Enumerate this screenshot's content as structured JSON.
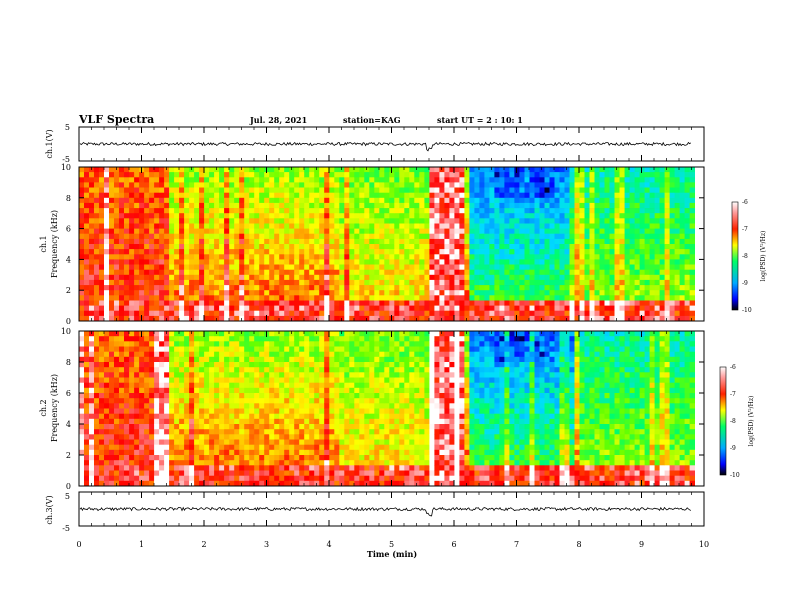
{
  "header": {
    "title": "VLF Spectra",
    "date": "Jul. 28, 2021",
    "station": "station=KAG",
    "start": "start  UT =  2 : 10: 1"
  },
  "colors": {
    "scale": [
      "#000000",
      "#0000ff",
      "#0088ff",
      "#00ddff",
      "#00ff66",
      "#66ff00",
      "#ffff00",
      "#ff8800",
      "#ff0000",
      "#ff9999",
      "#ffffff"
    ],
    "trace": "#000000",
    "frame": "#000000"
  },
  "chart_data": [
    {
      "type": "line",
      "panel": "ch1-waveform",
      "ylabel": "ch.1(V)",
      "ylim": [
        -5,
        5
      ],
      "yticks": [
        "5",
        "-5"
      ],
      "xlim": [
        0,
        10
      ],
      "note_level": 0
    },
    {
      "type": "heatmap",
      "panel": "ch1-spectrogram",
      "ylabel_line1": "ch.1",
      "ylabel_line2": "Frequency (kHz)",
      "ylim": [
        0,
        10
      ],
      "yticks": [
        "0",
        "2",
        "4",
        "6",
        "8",
        "10"
      ],
      "xlim": [
        0,
        10
      ],
      "colorbar": {
        "label": "log(PSD) (V²/Hz)",
        "range": [
          -10,
          -6
        ],
        "ticks": [
          "-6",
          "-7",
          "-8",
          "-9",
          "-10"
        ]
      }
    },
    {
      "type": "heatmap",
      "panel": "ch2-spectrogram",
      "ylabel_line1": "ch.2",
      "ylabel_line2": "Frequency (kHz)",
      "ylim": [
        0,
        10
      ],
      "yticks": [
        "0",
        "2",
        "4",
        "6",
        "8",
        "10"
      ],
      "xlim": [
        0,
        10
      ],
      "colorbar": {
        "label": "log(PSD) (V²/Hz)",
        "range": [
          -10,
          -6
        ],
        "ticks": [
          "-6",
          "-7",
          "-8",
          "-9",
          "-10"
        ]
      }
    },
    {
      "type": "line",
      "panel": "ch3-waveform",
      "ylabel": "ch.3(V)",
      "ylim": [
        -5,
        5
      ],
      "yticks": [
        "5",
        "-5"
      ],
      "xlim": [
        0,
        10
      ],
      "xlabel": "Time (min)",
      "xticks": [
        "0",
        "1",
        "2",
        "3",
        "4",
        "5",
        "6",
        "7",
        "8",
        "9",
        "10"
      ]
    }
  ]
}
